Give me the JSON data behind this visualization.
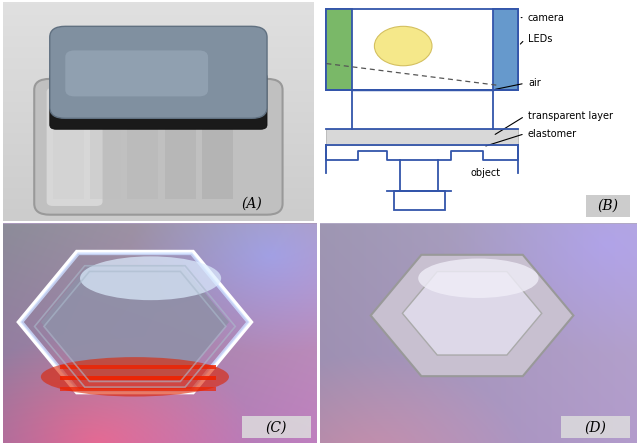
{
  "fig_width": 6.4,
  "fig_height": 4.47,
  "dpi": 100,
  "bg_color": "#ffffff",
  "label_A": "(A)",
  "label_B": "(B)",
  "label_C": "(C)",
  "label_D": "(D)",
  "diagram_labels": {
    "camera": "camera",
    "leds": "LEDs",
    "air": "air",
    "transparent": "transparent layer",
    "elastomer": "elastomer",
    "object": "object"
  },
  "colors": {
    "diagram_bg": "#ffffff",
    "diagram_border": "#3355aa",
    "green_bar": "#7ab868",
    "blue_bar": "#6699cc",
    "led_circle": "#f5e88a",
    "transparent_layer": "#d8d8d8",
    "panelA_bg": "#c8c8c8",
    "panelC_bg": "#aa99bb",
    "panelD_bg": "#b0a8c4"
  }
}
